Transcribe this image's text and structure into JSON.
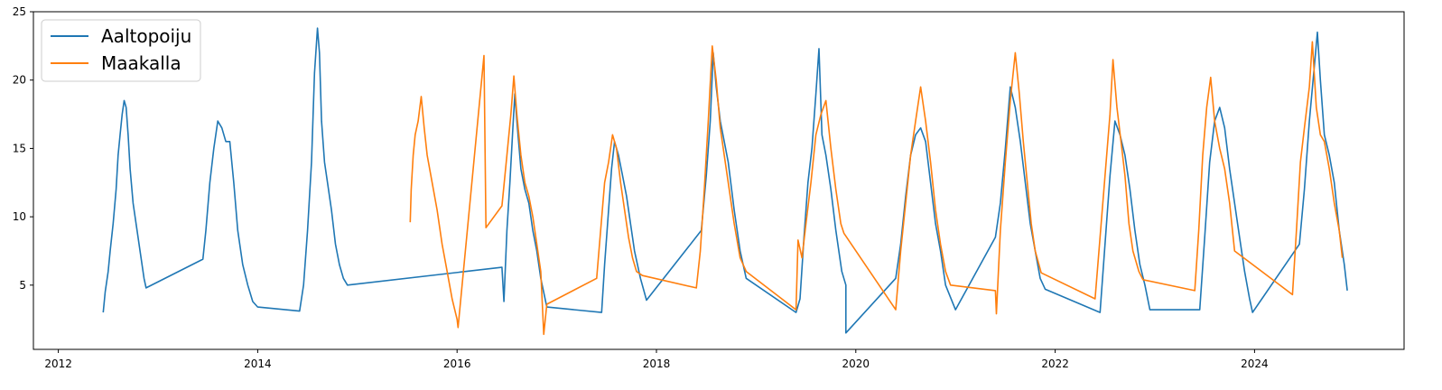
{
  "chart_data": {
    "type": "line",
    "title": "",
    "xlabel": "",
    "ylabel": "",
    "xlim": [
      2011.75,
      2025.5
    ],
    "ylim": [
      0.3,
      25
    ],
    "x_ticks": [
      2012,
      2014,
      2016,
      2018,
      2020,
      2022,
      2024
    ],
    "x_tick_labels": [
      "2012",
      "2014",
      "2016",
      "2018",
      "2020",
      "2022",
      "2024"
    ],
    "y_ticks": [
      5,
      10,
      15,
      20,
      25
    ],
    "y_tick_labels": [
      "5",
      "10",
      "15",
      "20",
      "25"
    ],
    "grid": false,
    "legend": {
      "position": "top-left",
      "entries": [
        "Aaltopoiju",
        "Maakalla"
      ]
    },
    "series": [
      {
        "name": "Aaltopoiju",
        "color": "#1f77b4",
        "points": [
          [
            2012.45,
            3.0
          ],
          [
            2012.47,
            4.5
          ],
          [
            2012.5,
            6.0
          ],
          [
            2012.52,
            7.5
          ],
          [
            2012.55,
            9.5
          ],
          [
            2012.58,
            12.0
          ],
          [
            2012.6,
            14.5
          ],
          [
            2012.62,
            16.0
          ],
          [
            2012.64,
            17.5
          ],
          [
            2012.66,
            18.5
          ],
          [
            2012.68,
            18.0
          ],
          [
            2012.7,
            16.0
          ],
          [
            2012.72,
            13.5
          ],
          [
            2012.75,
            11.0
          ],
          [
            2012.78,
            9.5
          ],
          [
            2012.82,
            7.5
          ],
          [
            2012.86,
            5.5
          ],
          [
            2012.88,
            4.8
          ],
          [
            2013.45,
            6.9
          ],
          [
            2013.48,
            9.0
          ],
          [
            2013.52,
            12.5
          ],
          [
            2013.56,
            15.0
          ],
          [
            2013.6,
            17.0
          ],
          [
            2013.64,
            16.5
          ],
          [
            2013.68,
            15.5
          ],
          [
            2013.72,
            15.5
          ],
          [
            2013.76,
            12.5
          ],
          [
            2013.8,
            9.0
          ],
          [
            2013.85,
            6.5
          ],
          [
            2013.9,
            5.0
          ],
          [
            2013.95,
            3.8
          ],
          [
            2014.0,
            3.4
          ],
          [
            2014.42,
            3.1
          ],
          [
            2014.46,
            5.0
          ],
          [
            2014.5,
            9.0
          ],
          [
            2014.54,
            14.0
          ],
          [
            2014.57,
            20.5
          ],
          [
            2014.6,
            23.8
          ],
          [
            2014.62,
            22.0
          ],
          [
            2014.64,
            17.0
          ],
          [
            2014.67,
            14.0
          ],
          [
            2014.7,
            12.5
          ],
          [
            2014.74,
            10.5
          ],
          [
            2014.78,
            8.0
          ],
          [
            2014.82,
            6.5
          ],
          [
            2014.86,
            5.5
          ],
          [
            2014.9,
            5.0
          ],
          [
            2016.45,
            6.3
          ],
          [
            2016.47,
            3.8
          ],
          [
            2016.5,
            9.0
          ],
          [
            2016.53,
            12.5
          ],
          [
            2016.56,
            16.5
          ],
          [
            2016.58,
            19.0
          ],
          [
            2016.6,
            17.0
          ],
          [
            2016.64,
            13.5
          ],
          [
            2016.68,
            12.0
          ],
          [
            2016.72,
            11.0
          ],
          [
            2016.76,
            9.0
          ],
          [
            2016.8,
            7.5
          ],
          [
            2016.84,
            5.5
          ],
          [
            2016.9,
            3.4
          ],
          [
            2017.45,
            3.0
          ],
          [
            2017.48,
            6.5
          ],
          [
            2017.52,
            10.5
          ],
          [
            2017.55,
            13.5
          ],
          [
            2017.58,
            15.5
          ],
          [
            2017.62,
            14.5
          ],
          [
            2017.66,
            13.0
          ],
          [
            2017.7,
            11.5
          ],
          [
            2017.74,
            9.5
          ],
          [
            2017.78,
            7.5
          ],
          [
            2017.84,
            5.5
          ],
          [
            2017.9,
            3.9
          ],
          [
            2018.45,
            9.0
          ],
          [
            2018.5,
            13.0
          ],
          [
            2018.54,
            17.0
          ],
          [
            2018.57,
            22.0
          ],
          [
            2018.6,
            19.5
          ],
          [
            2018.64,
            17.0
          ],
          [
            2018.68,
            15.5
          ],
          [
            2018.72,
            14.0
          ],
          [
            2018.78,
            10.5
          ],
          [
            2018.84,
            7.5
          ],
          [
            2018.9,
            5.5
          ],
          [
            2019.4,
            3.0
          ],
          [
            2019.44,
            4.0
          ],
          [
            2019.48,
            8.5
          ],
          [
            2019.52,
            12.5
          ],
          [
            2019.56,
            15.0
          ],
          [
            2019.6,
            19.0
          ],
          [
            2019.63,
            22.3
          ],
          [
            2019.66,
            16.0
          ],
          [
            2019.7,
            14.5
          ],
          [
            2019.75,
            12.0
          ],
          [
            2019.8,
            9.0
          ],
          [
            2019.86,
            6.0
          ],
          [
            2019.9,
            5.0
          ],
          [
            2019.9,
            1.5
          ],
          [
            2020.4,
            5.5
          ],
          [
            2020.45,
            8.0
          ],
          [
            2020.5,
            11.5
          ],
          [
            2020.55,
            14.5
          ],
          [
            2020.6,
            16.0
          ],
          [
            2020.65,
            16.5
          ],
          [
            2020.7,
            15.5
          ],
          [
            2020.75,
            12.5
          ],
          [
            2020.8,
            9.5
          ],
          [
            2020.85,
            7.5
          ],
          [
            2020.9,
            5.0
          ],
          [
            2021.0,
            3.2
          ],
          [
            2021.4,
            8.5
          ],
          [
            2021.45,
            11.0
          ],
          [
            2021.5,
            15.0
          ],
          [
            2021.55,
            19.5
          ],
          [
            2021.6,
            18.0
          ],
          [
            2021.65,
            15.5
          ],
          [
            2021.7,
            12.5
          ],
          [
            2021.75,
            9.5
          ],
          [
            2021.8,
            7.5
          ],
          [
            2021.85,
            5.5
          ],
          [
            2021.9,
            4.7
          ],
          [
            2022.45,
            3.0
          ],
          [
            2022.5,
            8.0
          ],
          [
            2022.55,
            13.0
          ],
          [
            2022.6,
            17.0
          ],
          [
            2022.65,
            16.0
          ],
          [
            2022.7,
            14.5
          ],
          [
            2022.75,
            12.0
          ],
          [
            2022.8,
            9.0
          ],
          [
            2022.85,
            6.5
          ],
          [
            2022.9,
            5.0
          ],
          [
            2022.95,
            3.2
          ],
          [
            2023.45,
            3.2
          ],
          [
            2023.5,
            8.5
          ],
          [
            2023.55,
            14.0
          ],
          [
            2023.6,
            17.0
          ],
          [
            2023.65,
            18.0
          ],
          [
            2023.7,
            16.5
          ],
          [
            2023.75,
            13.5
          ],
          [
            2023.8,
            11.0
          ],
          [
            2023.85,
            8.5
          ],
          [
            2023.9,
            6.0
          ],
          [
            2023.95,
            4.0
          ],
          [
            2023.98,
            3.0
          ],
          [
            2024.45,
            8.0
          ],
          [
            2024.5,
            12.0
          ],
          [
            2024.55,
            17.0
          ],
          [
            2024.6,
            21.0
          ],
          [
            2024.63,
            23.5
          ],
          [
            2024.66,
            20.0
          ],
          [
            2024.7,
            16.0
          ],
          [
            2024.75,
            14.5
          ],
          [
            2024.8,
            12.5
          ],
          [
            2024.85,
            9.0
          ],
          [
            2024.9,
            6.5
          ],
          [
            2024.93,
            4.6
          ]
        ]
      },
      {
        "name": "Maakalla",
        "color": "#ff7f0e",
        "points": [
          [
            2015.53,
            9.6
          ],
          [
            2015.54,
            12.0
          ],
          [
            2015.56,
            14.5
          ],
          [
            2015.58,
            16.0
          ],
          [
            2015.61,
            17.0
          ],
          [
            2015.64,
            18.8
          ],
          [
            2015.67,
            16.5
          ],
          [
            2015.7,
            14.5
          ],
          [
            2015.75,
            12.5
          ],
          [
            2015.8,
            10.5
          ],
          [
            2015.85,
            8.0
          ],
          [
            2015.9,
            6.0
          ],
          [
            2015.95,
            4.0
          ],
          [
            2016.0,
            2.5
          ],
          [
            2016.01,
            1.9
          ],
          [
            2016.27,
            21.8
          ],
          [
            2016.29,
            9.2
          ],
          [
            2016.45,
            10.8
          ],
          [
            2016.5,
            14.5
          ],
          [
            2016.54,
            17.5
          ],
          [
            2016.57,
            20.3
          ],
          [
            2016.6,
            17.5
          ],
          [
            2016.64,
            14.5
          ],
          [
            2016.68,
            12.5
          ],
          [
            2016.72,
            11.5
          ],
          [
            2016.76,
            10.0
          ],
          [
            2016.8,
            8.0
          ],
          [
            2016.84,
            6.0
          ],
          [
            2016.87,
            1.4
          ],
          [
            2016.9,
            3.6
          ],
          [
            2017.4,
            5.5
          ],
          [
            2017.44,
            9.0
          ],
          [
            2017.48,
            12.5
          ],
          [
            2017.52,
            14.0
          ],
          [
            2017.56,
            16.0
          ],
          [
            2017.6,
            15.0
          ],
          [
            2017.64,
            12.5
          ],
          [
            2017.68,
            10.5
          ],
          [
            2017.72,
            8.5
          ],
          [
            2017.76,
            7.0
          ],
          [
            2017.8,
            6.0
          ],
          [
            2017.86,
            5.7
          ],
          [
            2018.4,
            4.8
          ],
          [
            2018.44,
            7.5
          ],
          [
            2018.48,
            12.0
          ],
          [
            2018.52,
            17.0
          ],
          [
            2018.56,
            22.5
          ],
          [
            2018.6,
            20.0
          ],
          [
            2018.64,
            16.5
          ],
          [
            2018.68,
            14.5
          ],
          [
            2018.72,
            12.5
          ],
          [
            2018.78,
            9.5
          ],
          [
            2018.84,
            7.0
          ],
          [
            2018.9,
            6.0
          ],
          [
            2019.4,
            3.2
          ],
          [
            2019.42,
            8.3
          ],
          [
            2019.46,
            7.0
          ],
          [
            2019.5,
            9.5
          ],
          [
            2019.55,
            12.5
          ],
          [
            2019.6,
            16.0
          ],
          [
            2019.65,
            17.5
          ],
          [
            2019.7,
            18.5
          ],
          [
            2019.75,
            15.0
          ],
          [
            2019.8,
            12.0
          ],
          [
            2019.85,
            9.5
          ],
          [
            2019.88,
            8.8
          ],
          [
            2020.4,
            3.2
          ],
          [
            2020.45,
            7.5
          ],
          [
            2020.5,
            11.0
          ],
          [
            2020.55,
            14.5
          ],
          [
            2020.6,
            17.0
          ],
          [
            2020.65,
            19.5
          ],
          [
            2020.7,
            17.0
          ],
          [
            2020.75,
            14.0
          ],
          [
            2020.8,
            10.5
          ],
          [
            2020.85,
            8.0
          ],
          [
            2020.9,
            6.0
          ],
          [
            2020.95,
            5.0
          ],
          [
            2021.4,
            4.6
          ],
          [
            2021.41,
            2.9
          ],
          [
            2021.45,
            9.0
          ],
          [
            2021.5,
            14.0
          ],
          [
            2021.55,
            18.5
          ],
          [
            2021.6,
            22.0
          ],
          [
            2021.64,
            19.0
          ],
          [
            2021.68,
            15.5
          ],
          [
            2021.72,
            12.5
          ],
          [
            2021.76,
            9.5
          ],
          [
            2021.8,
            7.5
          ],
          [
            2021.86,
            5.9
          ],
          [
            2022.4,
            4.0
          ],
          [
            2022.45,
            8.5
          ],
          [
            2022.5,
            13.0
          ],
          [
            2022.55,
            17.5
          ],
          [
            2022.58,
            21.5
          ],
          [
            2022.62,
            18.0
          ],
          [
            2022.66,
            15.5
          ],
          [
            2022.7,
            13.0
          ],
          [
            2022.74,
            9.5
          ],
          [
            2022.78,
            7.5
          ],
          [
            2022.84,
            6.0
          ],
          [
            2022.88,
            5.4
          ],
          [
            2023.4,
            4.6
          ],
          [
            2023.44,
            9.0
          ],
          [
            2023.48,
            14.5
          ],
          [
            2023.52,
            18.0
          ],
          [
            2023.56,
            20.2
          ],
          [
            2023.6,
            17.0
          ],
          [
            2023.65,
            15.0
          ],
          [
            2023.7,
            13.5
          ],
          [
            2023.75,
            11.0
          ],
          [
            2023.8,
            7.5
          ],
          [
            2024.38,
            4.3
          ],
          [
            2024.42,
            9.0
          ],
          [
            2024.46,
            14.0
          ],
          [
            2024.5,
            16.5
          ],
          [
            2024.55,
            19.5
          ],
          [
            2024.58,
            22.8
          ],
          [
            2024.62,
            18.0
          ],
          [
            2024.66,
            16.0
          ],
          [
            2024.7,
            15.5
          ],
          [
            2024.75,
            13.5
          ],
          [
            2024.8,
            11.0
          ],
          [
            2024.85,
            9.0
          ],
          [
            2024.88,
            7.0
          ]
        ]
      }
    ]
  }
}
